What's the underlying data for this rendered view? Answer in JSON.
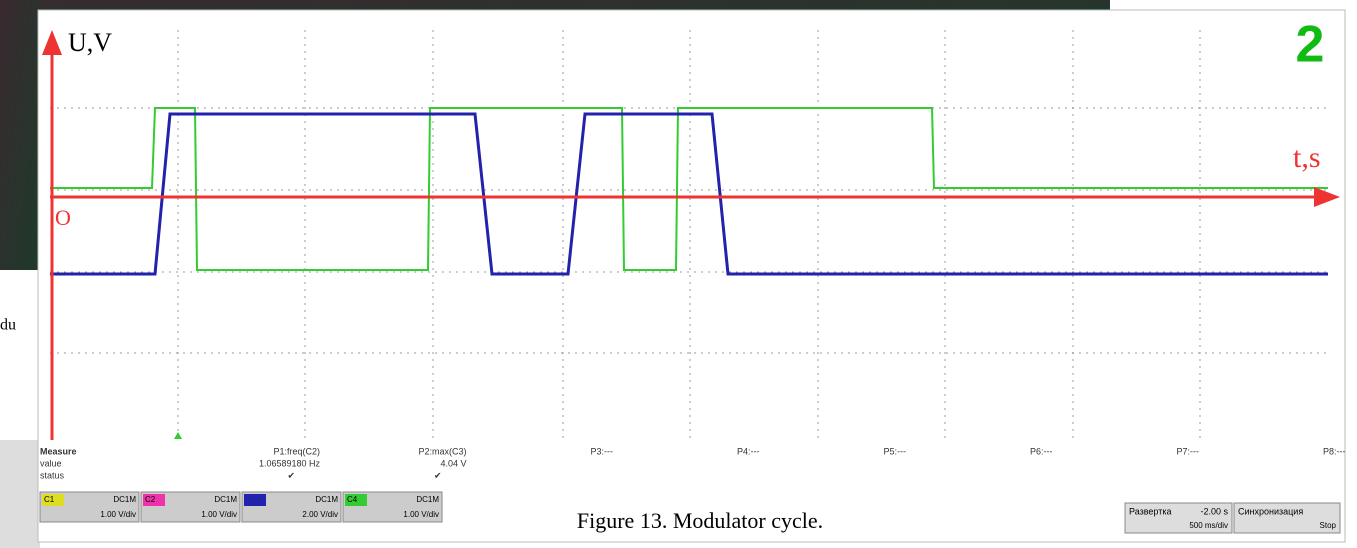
{
  "figure": {
    "badge": "2",
    "y_axis_label": "U,V",
    "x_axis_label": "t,s",
    "origin_label": "O",
    "caption": "Figure 13. Modulator cycle.",
    "side_text": "du"
  },
  "measure": {
    "row_labels": [
      "Measure",
      "value",
      "status"
    ],
    "columns": [
      {
        "name": "P1:freq(C2)",
        "value": "1.06589180 Hz",
        "status": "✔"
      },
      {
        "name": "P2:max(C3)",
        "value": "4.04 V",
        "status": "✔"
      },
      {
        "name": "P3:---"
      },
      {
        "name": "P4:---"
      },
      {
        "name": "P5:---"
      },
      {
        "name": "P6:---"
      },
      {
        "name": "P7:---"
      },
      {
        "name": "P8:---"
      }
    ]
  },
  "channels": [
    {
      "label": "C1",
      "coupling": "DC1M",
      "scale": "1.00 V/div"
    },
    {
      "label": "C2",
      "coupling": "DC1M",
      "scale": "1.00 V/div"
    },
    {
      "label": "",
      "coupling": "DC1M",
      "scale": "2.00 V/div"
    },
    {
      "label": "C4",
      "coupling": "DC1M",
      "scale": "1.00 V/div"
    }
  ],
  "timebase": {
    "label": "Развертка",
    "value": "-2.00 s",
    "sub": "500 ms/div"
  },
  "trigger": {
    "label": "Синхронизация",
    "sub": "Stop"
  }
}
